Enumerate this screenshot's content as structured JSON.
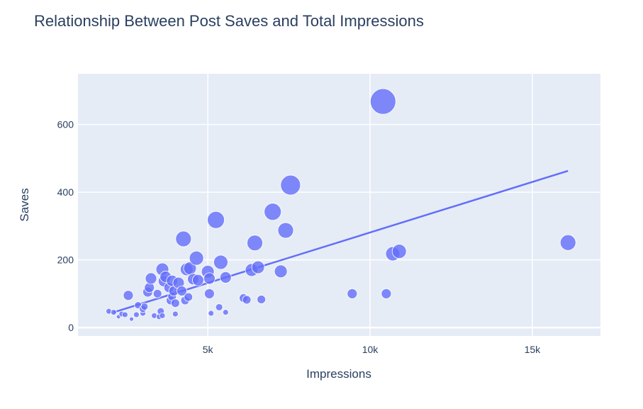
{
  "chart_data": {
    "type": "scatter",
    "title": "Relationship Between Post Saves and Total Impressions",
    "xlabel": "Impressions",
    "ylabel": "Saves",
    "xlim": [
      1000,
      17100
    ],
    "ylim": [
      -25,
      750
    ],
    "xticks": [
      {
        "value": 5000,
        "label": "5k"
      },
      {
        "value": 10000,
        "label": "10k"
      },
      {
        "value": 15000,
        "label": "15k"
      }
    ],
    "yticks": [
      {
        "value": 0,
        "label": "0"
      },
      {
        "value": 200,
        "label": "200"
      },
      {
        "value": 400,
        "label": "400"
      },
      {
        "value": 600,
        "label": "600"
      }
    ],
    "grid": true,
    "colors": {
      "marker": "#636efa",
      "line": "#636efa",
      "plot_bg": "#e5ecf6",
      "grid": "#ffffff",
      "text": "#2a3f5f"
    },
    "trendline": {
      "x": [
        2100,
        16100
      ],
      "y": [
        45,
        463
      ]
    },
    "points": [
      {
        "x": 1950,
        "y": 48,
        "size": 4
      },
      {
        "x": 2100,
        "y": 45,
        "size": 4
      },
      {
        "x": 2250,
        "y": 32,
        "size": 3
      },
      {
        "x": 2350,
        "y": 40,
        "size": 4
      },
      {
        "x": 2450,
        "y": 38,
        "size": 4
      },
      {
        "x": 2550,
        "y": 95,
        "size": 7
      },
      {
        "x": 2650,
        "y": 25,
        "size": 3
      },
      {
        "x": 2800,
        "y": 38,
        "size": 4
      },
      {
        "x": 2850,
        "y": 66,
        "size": 5
      },
      {
        "x": 3000,
        "y": 42,
        "size": 4
      },
      {
        "x": 3000,
        "y": 55,
        "size": 5
      },
      {
        "x": 3050,
        "y": 62,
        "size": 5
      },
      {
        "x": 3150,
        "y": 105,
        "size": 7
      },
      {
        "x": 3200,
        "y": 118,
        "size": 7
      },
      {
        "x": 3250,
        "y": 145,
        "size": 8
      },
      {
        "x": 3350,
        "y": 35,
        "size": 4
      },
      {
        "x": 3450,
        "y": 100,
        "size": 6
      },
      {
        "x": 3500,
        "y": 32,
        "size": 4
      },
      {
        "x": 3550,
        "y": 48,
        "size": 5
      },
      {
        "x": 3600,
        "y": 35,
        "size": 4
      },
      {
        "x": 3600,
        "y": 172,
        "size": 9
      },
      {
        "x": 3650,
        "y": 137,
        "size": 8
      },
      {
        "x": 3700,
        "y": 150,
        "size": 8
      },
      {
        "x": 3800,
        "y": 118,
        "size": 7
      },
      {
        "x": 3850,
        "y": 80,
        "size": 6
      },
      {
        "x": 3900,
        "y": 92,
        "size": 6
      },
      {
        "x": 3900,
        "y": 138,
        "size": 8
      },
      {
        "x": 3950,
        "y": 108,
        "size": 7
      },
      {
        "x": 4000,
        "y": 72,
        "size": 6
      },
      {
        "x": 4000,
        "y": 40,
        "size": 4
      },
      {
        "x": 4100,
        "y": 132,
        "size": 8
      },
      {
        "x": 4200,
        "y": 108,
        "size": 7
      },
      {
        "x": 4250,
        "y": 262,
        "size": 11
      },
      {
        "x": 4300,
        "y": 80,
        "size": 6
      },
      {
        "x": 4350,
        "y": 172,
        "size": 9
      },
      {
        "x": 4400,
        "y": 90,
        "size": 6
      },
      {
        "x": 4450,
        "y": 175,
        "size": 9
      },
      {
        "x": 4550,
        "y": 143,
        "size": 8
      },
      {
        "x": 4650,
        "y": 205,
        "size": 10
      },
      {
        "x": 4700,
        "y": 140,
        "size": 8
      },
      {
        "x": 5000,
        "y": 165,
        "size": 9
      },
      {
        "x": 5050,
        "y": 145,
        "size": 8
      },
      {
        "x": 5050,
        "y": 100,
        "size": 7
      },
      {
        "x": 5100,
        "y": 42,
        "size": 4
      },
      {
        "x": 5250,
        "y": 318,
        "size": 12
      },
      {
        "x": 5350,
        "y": 60,
        "size": 5
      },
      {
        "x": 5400,
        "y": 193,
        "size": 10
      },
      {
        "x": 5550,
        "y": 148,
        "size": 8
      },
      {
        "x": 5550,
        "y": 45,
        "size": 4
      },
      {
        "x": 6100,
        "y": 87,
        "size": 6
      },
      {
        "x": 6200,
        "y": 82,
        "size": 6
      },
      {
        "x": 6350,
        "y": 170,
        "size": 9
      },
      {
        "x": 6450,
        "y": 250,
        "size": 11
      },
      {
        "x": 6550,
        "y": 178,
        "size": 9
      },
      {
        "x": 6650,
        "y": 83,
        "size": 6
      },
      {
        "x": 7000,
        "y": 342,
        "size": 12
      },
      {
        "x": 7250,
        "y": 166,
        "size": 9
      },
      {
        "x": 7400,
        "y": 287,
        "size": 11
      },
      {
        "x": 7550,
        "y": 421,
        "size": 14
      },
      {
        "x": 9450,
        "y": 100,
        "size": 7
      },
      {
        "x": 10400,
        "y": 668,
        "size": 18
      },
      {
        "x": 10500,
        "y": 100,
        "size": 7
      },
      {
        "x": 10700,
        "y": 218,
        "size": 10
      },
      {
        "x": 10900,
        "y": 225,
        "size": 10
      },
      {
        "x": 16100,
        "y": 251,
        "size": 11
      }
    ]
  }
}
